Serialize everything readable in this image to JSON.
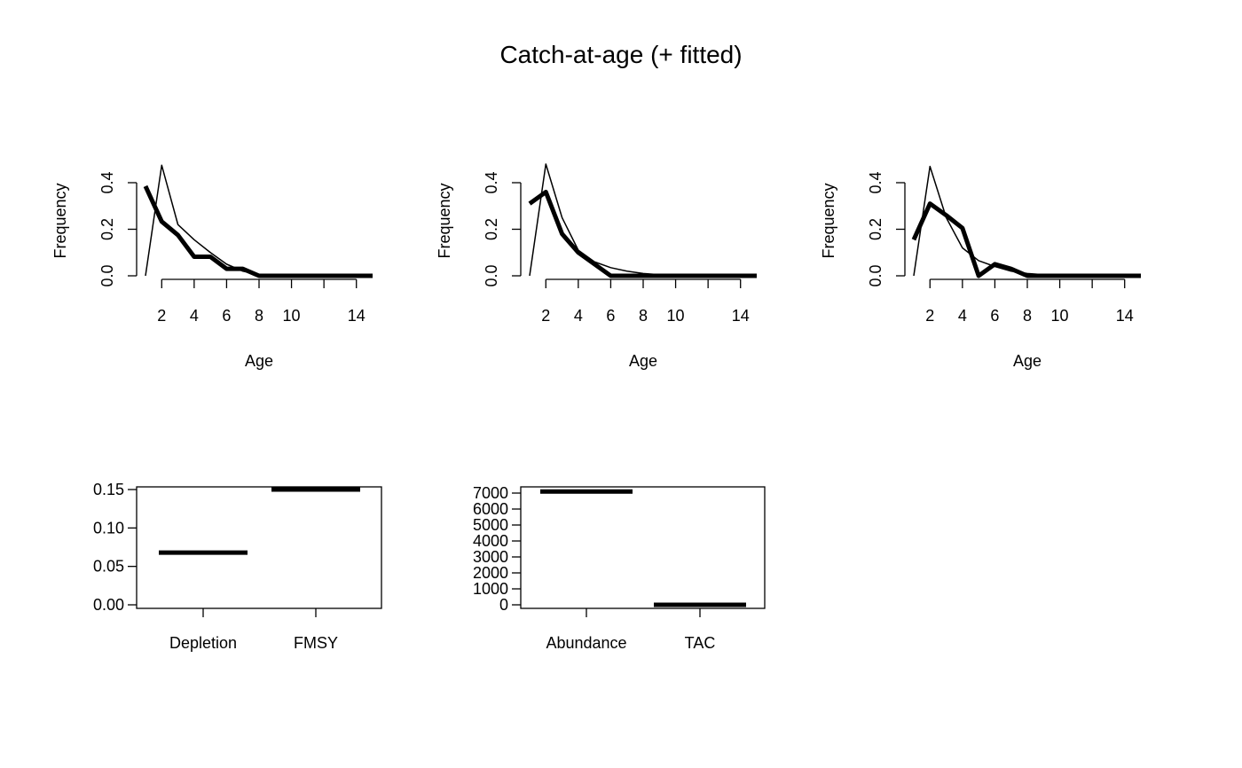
{
  "title": "Catch-at-age (+ fitted)",
  "chart_data": [
    {
      "type": "line",
      "xlabel": "Age",
      "ylabel": "Frequency",
      "xlim": [
        1,
        15
      ],
      "ylim": [
        0,
        0.45
      ],
      "x_ticks": [
        2,
        4,
        6,
        8,
        10,
        12,
        14
      ],
      "x_tick_labels": [
        "2",
        "4",
        "6",
        "8",
        "10",
        "",
        "14"
      ],
      "y_ticks": [
        0.0,
        0.2,
        0.4
      ],
      "y_tick_labels": [
        "0.0",
        "0.2",
        "0.4"
      ],
      "x": [
        1,
        2,
        3,
        4,
        5,
        6,
        7,
        8,
        9,
        10,
        11,
        12,
        13,
        14,
        15
      ],
      "series": [
        {
          "style": "thick",
          "values": [
            0.385,
            0.233,
            0.175,
            0.082,
            0.082,
            0.03,
            0.03,
            0.0,
            0.0,
            0.0,
            0.0,
            0.0,
            0.0,
            0.0,
            0.0
          ]
        },
        {
          "style": "thin",
          "values": [
            0.0,
            0.475,
            0.22,
            0.155,
            0.1,
            0.05,
            0.02,
            0.005,
            0.002,
            0.0,
            0.0,
            0.0,
            0.0,
            0.0,
            0.0
          ]
        }
      ]
    },
    {
      "type": "line",
      "xlabel": "Age",
      "ylabel": "Frequency",
      "xlim": [
        1,
        15
      ],
      "ylim": [
        0,
        0.45
      ],
      "x_ticks": [
        2,
        4,
        6,
        8,
        10,
        12,
        14
      ],
      "x_tick_labels": [
        "2",
        "4",
        "6",
        "8",
        "10",
        "",
        "14"
      ],
      "y_ticks": [
        0.0,
        0.2,
        0.4
      ],
      "y_tick_labels": [
        "0.0",
        "0.2",
        "0.4"
      ],
      "x": [
        1,
        2,
        3,
        4,
        5,
        6,
        7,
        8,
        9,
        10,
        11,
        12,
        13,
        14,
        15
      ],
      "series": [
        {
          "style": "thick",
          "values": [
            0.31,
            0.36,
            0.18,
            0.1,
            0.05,
            0.0,
            0.0,
            0.0,
            0.0,
            0.0,
            0.0,
            0.0,
            0.0,
            0.0,
            0.0
          ]
        },
        {
          "style": "thin",
          "values": [
            0.0,
            0.48,
            0.25,
            0.11,
            0.06,
            0.035,
            0.02,
            0.01,
            0.005,
            0.002,
            0.0,
            0.0,
            0.0,
            0.0,
            0.0
          ]
        }
      ]
    },
    {
      "type": "line",
      "xlabel": "Age",
      "ylabel": "Frequency",
      "xlim": [
        1,
        15
      ],
      "ylim": [
        0,
        0.45
      ],
      "x_ticks": [
        2,
        4,
        6,
        8,
        10,
        12,
        14
      ],
      "x_tick_labels": [
        "2",
        "4",
        "6",
        "8",
        "10",
        "",
        "14"
      ],
      "y_ticks": [
        0.0,
        0.2,
        0.4
      ],
      "y_tick_labels": [
        "0.0",
        "0.2",
        "0.4"
      ],
      "x": [
        1,
        2,
        3,
        4,
        5,
        6,
        7,
        8,
        9,
        10,
        11,
        12,
        13,
        14,
        15
      ],
      "series": [
        {
          "style": "thick",
          "values": [
            0.155,
            0.31,
            0.26,
            0.205,
            0.0,
            0.05,
            0.03,
            0.0,
            0.0,
            0.0,
            0.0,
            0.0,
            0.0,
            0.0,
            0.0
          ]
        },
        {
          "style": "thin",
          "values": [
            0.0,
            0.47,
            0.25,
            0.12,
            0.065,
            0.04,
            0.02,
            0.01,
            0.005,
            0.002,
            0.0,
            0.0,
            0.0,
            0.0,
            0.0
          ]
        }
      ]
    },
    {
      "type": "bar",
      "style": "median-lines",
      "categories": [
        "Depletion",
        "FMSY"
      ],
      "values": [
        0.068,
        0.15
      ],
      "ylim": [
        0,
        0.15
      ],
      "y_ticks": [
        0.0,
        0.05,
        0.1,
        0.15
      ],
      "y_tick_labels": [
        "0.00",
        "0.05",
        "0.10",
        "0.15"
      ]
    },
    {
      "type": "bar",
      "style": "median-lines",
      "categories": [
        "Abundance",
        "TAC"
      ],
      "values": [
        7100,
        0
      ],
      "ylim": [
        0,
        7100
      ],
      "y_ticks": [
        0,
        1000,
        2000,
        3000,
        4000,
        5000,
        6000,
        7000
      ],
      "y_tick_labels": [
        "0",
        "1000",
        "2000",
        "3000",
        "4000",
        "5000",
        "6000",
        "7000"
      ]
    }
  ]
}
